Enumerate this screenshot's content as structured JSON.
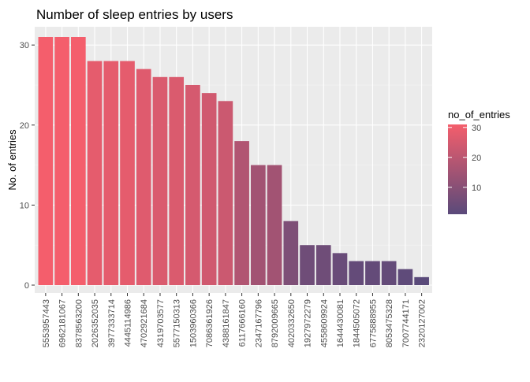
{
  "chart_data": {
    "type": "bar",
    "title": "Number of sleep entries by users",
    "xlabel": "",
    "ylabel": "No. of entries",
    "ylim": [
      0,
      31
    ],
    "yticks": [
      0,
      10,
      20,
      30
    ],
    "grid": true,
    "legend_position": "right",
    "categories": [
      "5553957443",
      "6962181067",
      "8378563200",
      "2026352035",
      "3977333714",
      "4445114986",
      "4702921684",
      "4319703577",
      "5577150313",
      "1503960366",
      "7086361926",
      "4388161847",
      "6117666160",
      "2347167796",
      "8792009665",
      "4020332650",
      "1927972279",
      "4558609924",
      "1644430081",
      "1844505072",
      "6775888955",
      "8053475328",
      "7007744171",
      "2320127002"
    ],
    "values": [
      31,
      31,
      31,
      28,
      28,
      28,
      27,
      26,
      26,
      25,
      24,
      23,
      18,
      15,
      15,
      8,
      5,
      5,
      4,
      3,
      3,
      3,
      2,
      1
    ],
    "fill_scale": {
      "name": "no_of_entries",
      "low_color": "#5a4a7a",
      "high_color": "#f45e6c",
      "breaks": [
        30,
        20,
        10
      ]
    }
  },
  "colors": {
    "panel_background": "#ebebeb",
    "grid_major": "#ffffff",
    "grid_minor": "#f5f5f5"
  }
}
